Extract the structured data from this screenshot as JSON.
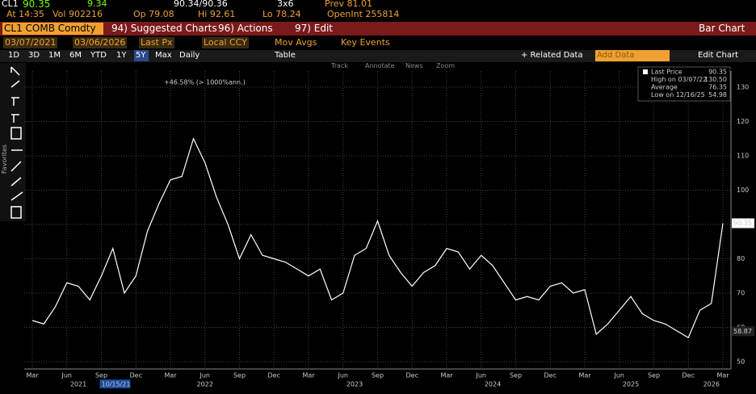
{
  "header": {
    "ticker": "CL1",
    "last": "90.35",
    "change": "9.34",
    "bid_ask": "90.34/90.36",
    "size": "3x6",
    "prev": "Prev 81.01",
    "time": "At 14:35",
    "vol": "Vol 902216",
    "open": "Op 79.08",
    "high": "Hi 92.61",
    "low": "Lo 78.24",
    "open_int": "OpenInt 255814"
  },
  "toolbar": {
    "security": "CL1 COMB Comdty",
    "menu": [
      "94) Suggested Charts",
      "96) Actions",
      "97) Edit"
    ],
    "chart_type": "Bar Chart",
    "start": "03/07/2021",
    "end": "03/06/2026",
    "field": "Last Px",
    "currency": "Local CCY",
    "toggles": [
      "Mov Avgs",
      "Key Events"
    ],
    "periods": [
      "1D",
      "3D",
      "1M",
      "6M",
      "YTD",
      "1Y",
      "5Y",
      "Max"
    ],
    "frequency": "Daily",
    "table": "Table",
    "related": "+ Related Data",
    "add": "Add Data",
    "edit": "Edit Chart",
    "tools": [
      "Track",
      "Annotate",
      "News",
      "Zoom"
    ],
    "favorites": "Favorites"
  },
  "chart_data": {
    "type": "line",
    "x": [
      "2021-03",
      "2021-04",
      "2021-05",
      "2021-06",
      "2021-07",
      "2021-08",
      "2021-09",
      "2021-10",
      "2021-11",
      "2021-12",
      "2022-01",
      "2022-02",
      "2022-03",
      "2022-04",
      "2022-05",
      "2022-06",
      "2022-07",
      "2022-08",
      "2022-09",
      "2022-10",
      "2022-11",
      "2022-12",
      "2023-01",
      "2023-02",
      "2023-03",
      "2023-04",
      "2023-05",
      "2023-06",
      "2023-07",
      "2023-08",
      "2023-09",
      "2023-10",
      "2023-11",
      "2023-12",
      "2024-01",
      "2024-02",
      "2024-03",
      "2024-04",
      "2024-05",
      "2024-06",
      "2024-07",
      "2024-08",
      "2024-09",
      "2024-10",
      "2024-11",
      "2024-12",
      "2025-01",
      "2025-02",
      "2025-03",
      "2025-04",
      "2025-05",
      "2025-06",
      "2025-07",
      "2025-08",
      "2025-09",
      "2025-10",
      "2025-11",
      "2025-12",
      "2026-01",
      "2026-02",
      "2026-03"
    ],
    "series": [
      {
        "name": "Last Price",
        "color": "#ffffff",
        "values": [
          62,
          61,
          66,
          73,
          72,
          68,
          75,
          83,
          70,
          75,
          88,
          96,
          103,
          104,
          115,
          108,
          98,
          90,
          80,
          87,
          81,
          80,
          79,
          77,
          75,
          77,
          68,
          70,
          81,
          83,
          91,
          81,
          76,
          72,
          76,
          78,
          83,
          82,
          77,
          81,
          78,
          73,
          68,
          69,
          68,
          72,
          73,
          70,
          71,
          58,
          61,
          65,
          69,
          64,
          62,
          61,
          59,
          57,
          65,
          67,
          90.35
        ]
      }
    ],
    "ylim": [
      48,
      134
    ],
    "yticks": [
      50,
      60,
      70,
      80,
      90,
      100,
      110,
      120,
      130
    ],
    "grid": true,
    "xticks": [
      {
        "value": "2021-03",
        "label": "Mar"
      },
      {
        "value": "2021-06",
        "label": "Jun"
      },
      {
        "value": "2021-09",
        "label": "Sep"
      },
      {
        "value": "2021-12",
        "label": "Dec"
      },
      {
        "value": "2022-03",
        "label": "Mar"
      },
      {
        "value": "2022-06",
        "label": "Jun"
      },
      {
        "value": "2022-09",
        "label": "Sep"
      },
      {
        "value": "2022-12",
        "label": "Dec"
      },
      {
        "value": "2023-03",
        "label": "Mar"
      },
      {
        "value": "2023-06",
        "label": "Jun"
      },
      {
        "value": "2023-09",
        "label": "Sep"
      },
      {
        "value": "2023-12",
        "label": "Dec"
      },
      {
        "value": "2024-03",
        "label": "Mar"
      },
      {
        "value": "2024-06",
        "label": "Jun"
      },
      {
        "value": "2024-09",
        "label": "Sep"
      },
      {
        "value": "2024-12",
        "label": "Dec"
      },
      {
        "value": "2025-03",
        "label": "Mar"
      },
      {
        "value": "2025-06",
        "label": "Jun"
      },
      {
        "value": "2025-09",
        "label": "Sep"
      },
      {
        "value": "2025-12",
        "label": "Dec"
      },
      {
        "value": "2026-03",
        "label": "Mar"
      }
    ],
    "year_labels": [
      {
        "value": "2021-07",
        "label": "2021"
      },
      {
        "value": "2022-06",
        "label": "2022"
      },
      {
        "value": "2023-07",
        "label": "2023"
      },
      {
        "value": "2024-07",
        "label": "2024"
      },
      {
        "value": "2025-07",
        "label": "2025"
      },
      {
        "value": "2026-02",
        "label": "2026"
      }
    ],
    "cursor_date": {
      "value": "2021-09",
      "label": "10/15/21"
    },
    "annotation": {
      "value": "2022-03",
      "label": "+46.58% (> 1000%ann.)"
    },
    "last_tag": 90.35,
    "band_tag": 58.87,
    "legend": [
      {
        "label": "Last Price",
        "value": "90.35"
      },
      {
        "label": "High on 03/07/22",
        "value": "130.50"
      },
      {
        "label": "Average",
        "value": "76.35"
      },
      {
        "label": "Low on 12/16/25",
        "value": "54.98"
      }
    ]
  }
}
